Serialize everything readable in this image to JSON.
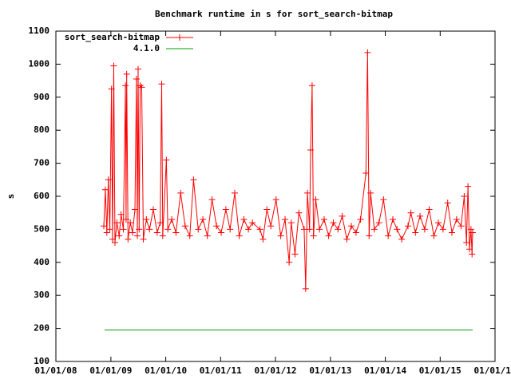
{
  "chart_data": {
    "type": "line",
    "title": "Benchmark runtime in s for sort_search-bitmap",
    "y_label": "s",
    "xlim": [
      "2008-01-01",
      "2016-01-01"
    ],
    "xticks": [
      {
        "value": "2008-01-01",
        "label": "01/01/08"
      },
      {
        "value": "2009-01-01",
        "label": "01/01/09"
      },
      {
        "value": "2010-01-01",
        "label": "01/01/10"
      },
      {
        "value": "2011-01-01",
        "label": "01/01/11"
      },
      {
        "value": "2012-01-01",
        "label": "01/01/12"
      },
      {
        "value": "2013-01-01",
        "label": "01/01/13"
      },
      {
        "value": "2014-01-01",
        "label": "01/01/14"
      },
      {
        "value": "2015-01-01",
        "label": "01/01/15"
      },
      {
        "value": "2016-01-01",
        "label": "01/01/16"
      }
    ],
    "ylim": [
      100,
      1100
    ],
    "yticks": [
      100,
      200,
      300,
      400,
      500,
      600,
      700,
      800,
      900,
      1000,
      1100
    ],
    "legend": "top-left",
    "series": [
      {
        "name": "sort_search-bitmap",
        "color": "#ff0000",
        "markers": true,
        "x": [
          "2008-11-15",
          "2008-11-25",
          "2008-12-05",
          "2008-12-15",
          "2008-12-25",
          "2009-01-05",
          "2009-01-12",
          "2009-01-20",
          "2009-01-28",
          "2009-02-10",
          "2009-02-25",
          "2009-03-10",
          "2009-03-25",
          "2009-04-08",
          "2009-04-12",
          "2009-04-16",
          "2009-04-25",
          "2009-05-10",
          "2009-05-25",
          "2009-06-10",
          "2009-06-20",
          "2009-06-26",
          "2009-07-01",
          "2009-07-08",
          "2009-07-15",
          "2009-07-25",
          "2009-08-05",
          "2009-08-25",
          "2009-09-15",
          "2009-10-10",
          "2009-11-05",
          "2009-11-25",
          "2009-12-05",
          "2009-12-12",
          "2010-01-05",
          "2010-01-15",
          "2010-02-10",
          "2010-03-10",
          "2010-04-10",
          "2010-05-10",
          "2010-06-10",
          "2010-07-05",
          "2010-08-05",
          "2010-09-05",
          "2010-10-05",
          "2010-11-05",
          "2010-12-05",
          "2011-01-05",
          "2011-02-05",
          "2011-03-05",
          "2011-04-05",
          "2011-05-05",
          "2011-06-05",
          "2011-07-05",
          "2011-08-01",
          "2011-09-20",
          "2011-10-10",
          "2011-11-05",
          "2011-12-01",
          "2012-01-05",
          "2012-02-05",
          "2012-03-05",
          "2012-04-01",
          "2012-04-15",
          "2012-05-10",
          "2012-06-05",
          "2012-07-10",
          "2012-07-20",
          "2012-08-01",
          "2012-08-15",
          "2012-08-22",
          "2012-09-01",
          "2012-09-10",
          "2012-09-25",
          "2012-10-20",
          "2012-11-20",
          "2012-12-20",
          "2013-01-20",
          "2013-02-20",
          "2013-03-20",
          "2013-04-20",
          "2013-05-20",
          "2013-06-20",
          "2013-07-20",
          "2013-08-25",
          "2013-09-05",
          "2013-09-15",
          "2013-09-25",
          "2013-10-20",
          "2013-11-20",
          "2013-12-20",
          "2014-01-20",
          "2014-02-20",
          "2014-03-20",
          "2014-04-20",
          "2014-06-01",
          "2014-06-20",
          "2014-07-20",
          "2014-08-20",
          "2014-09-20",
          "2014-10-20",
          "2014-11-20",
          "2014-12-20",
          "2015-01-20",
          "2015-02-20",
          "2015-03-20",
          "2015-04-20",
          "2015-05-20",
          "2015-06-10",
          "2015-06-25",
          "2015-07-05",
          "2015-07-15",
          "2015-07-25",
          "2015-08-01",
          "2015-08-05"
        ],
        "values": [
          510,
          620,
          490,
          650,
          500,
          925,
          470,
          995,
          460,
          520,
          480,
          545,
          500,
          935,
          530,
          970,
          470,
          520,
          490,
          560,
          955,
          480,
          985,
          500,
          935,
          930,
          470,
          530,
          500,
          560,
          490,
          520,
          940,
          480,
          710,
          500,
          530,
          490,
          610,
          510,
          480,
          650,
          500,
          530,
          480,
          590,
          510,
          490,
          560,
          500,
          610,
          480,
          530,
          500,
          520,
          500,
          470,
          560,
          510,
          590,
          480,
          530,
          400,
          520,
          425,
          550,
          500,
          320,
          610,
          500,
          740,
          935,
          480,
          590,
          500,
          530,
          480,
          520,
          500,
          540,
          470,
          510,
          490,
          530,
          670,
          1035,
          480,
          610,
          500,
          520,
          590,
          480,
          530,
          500,
          470,
          510,
          550,
          490,
          540,
          500,
          560,
          480,
          520,
          500,
          580,
          490,
          530,
          510,
          600,
          460,
          630,
          440,
          500,
          425,
          490
        ]
      },
      {
        "name": "4.1.0",
        "color": "#00a000",
        "markers": false,
        "x": [
          "2008-11-20",
          "2015-08-05"
        ],
        "values": [
          195,
          195
        ]
      }
    ]
  }
}
